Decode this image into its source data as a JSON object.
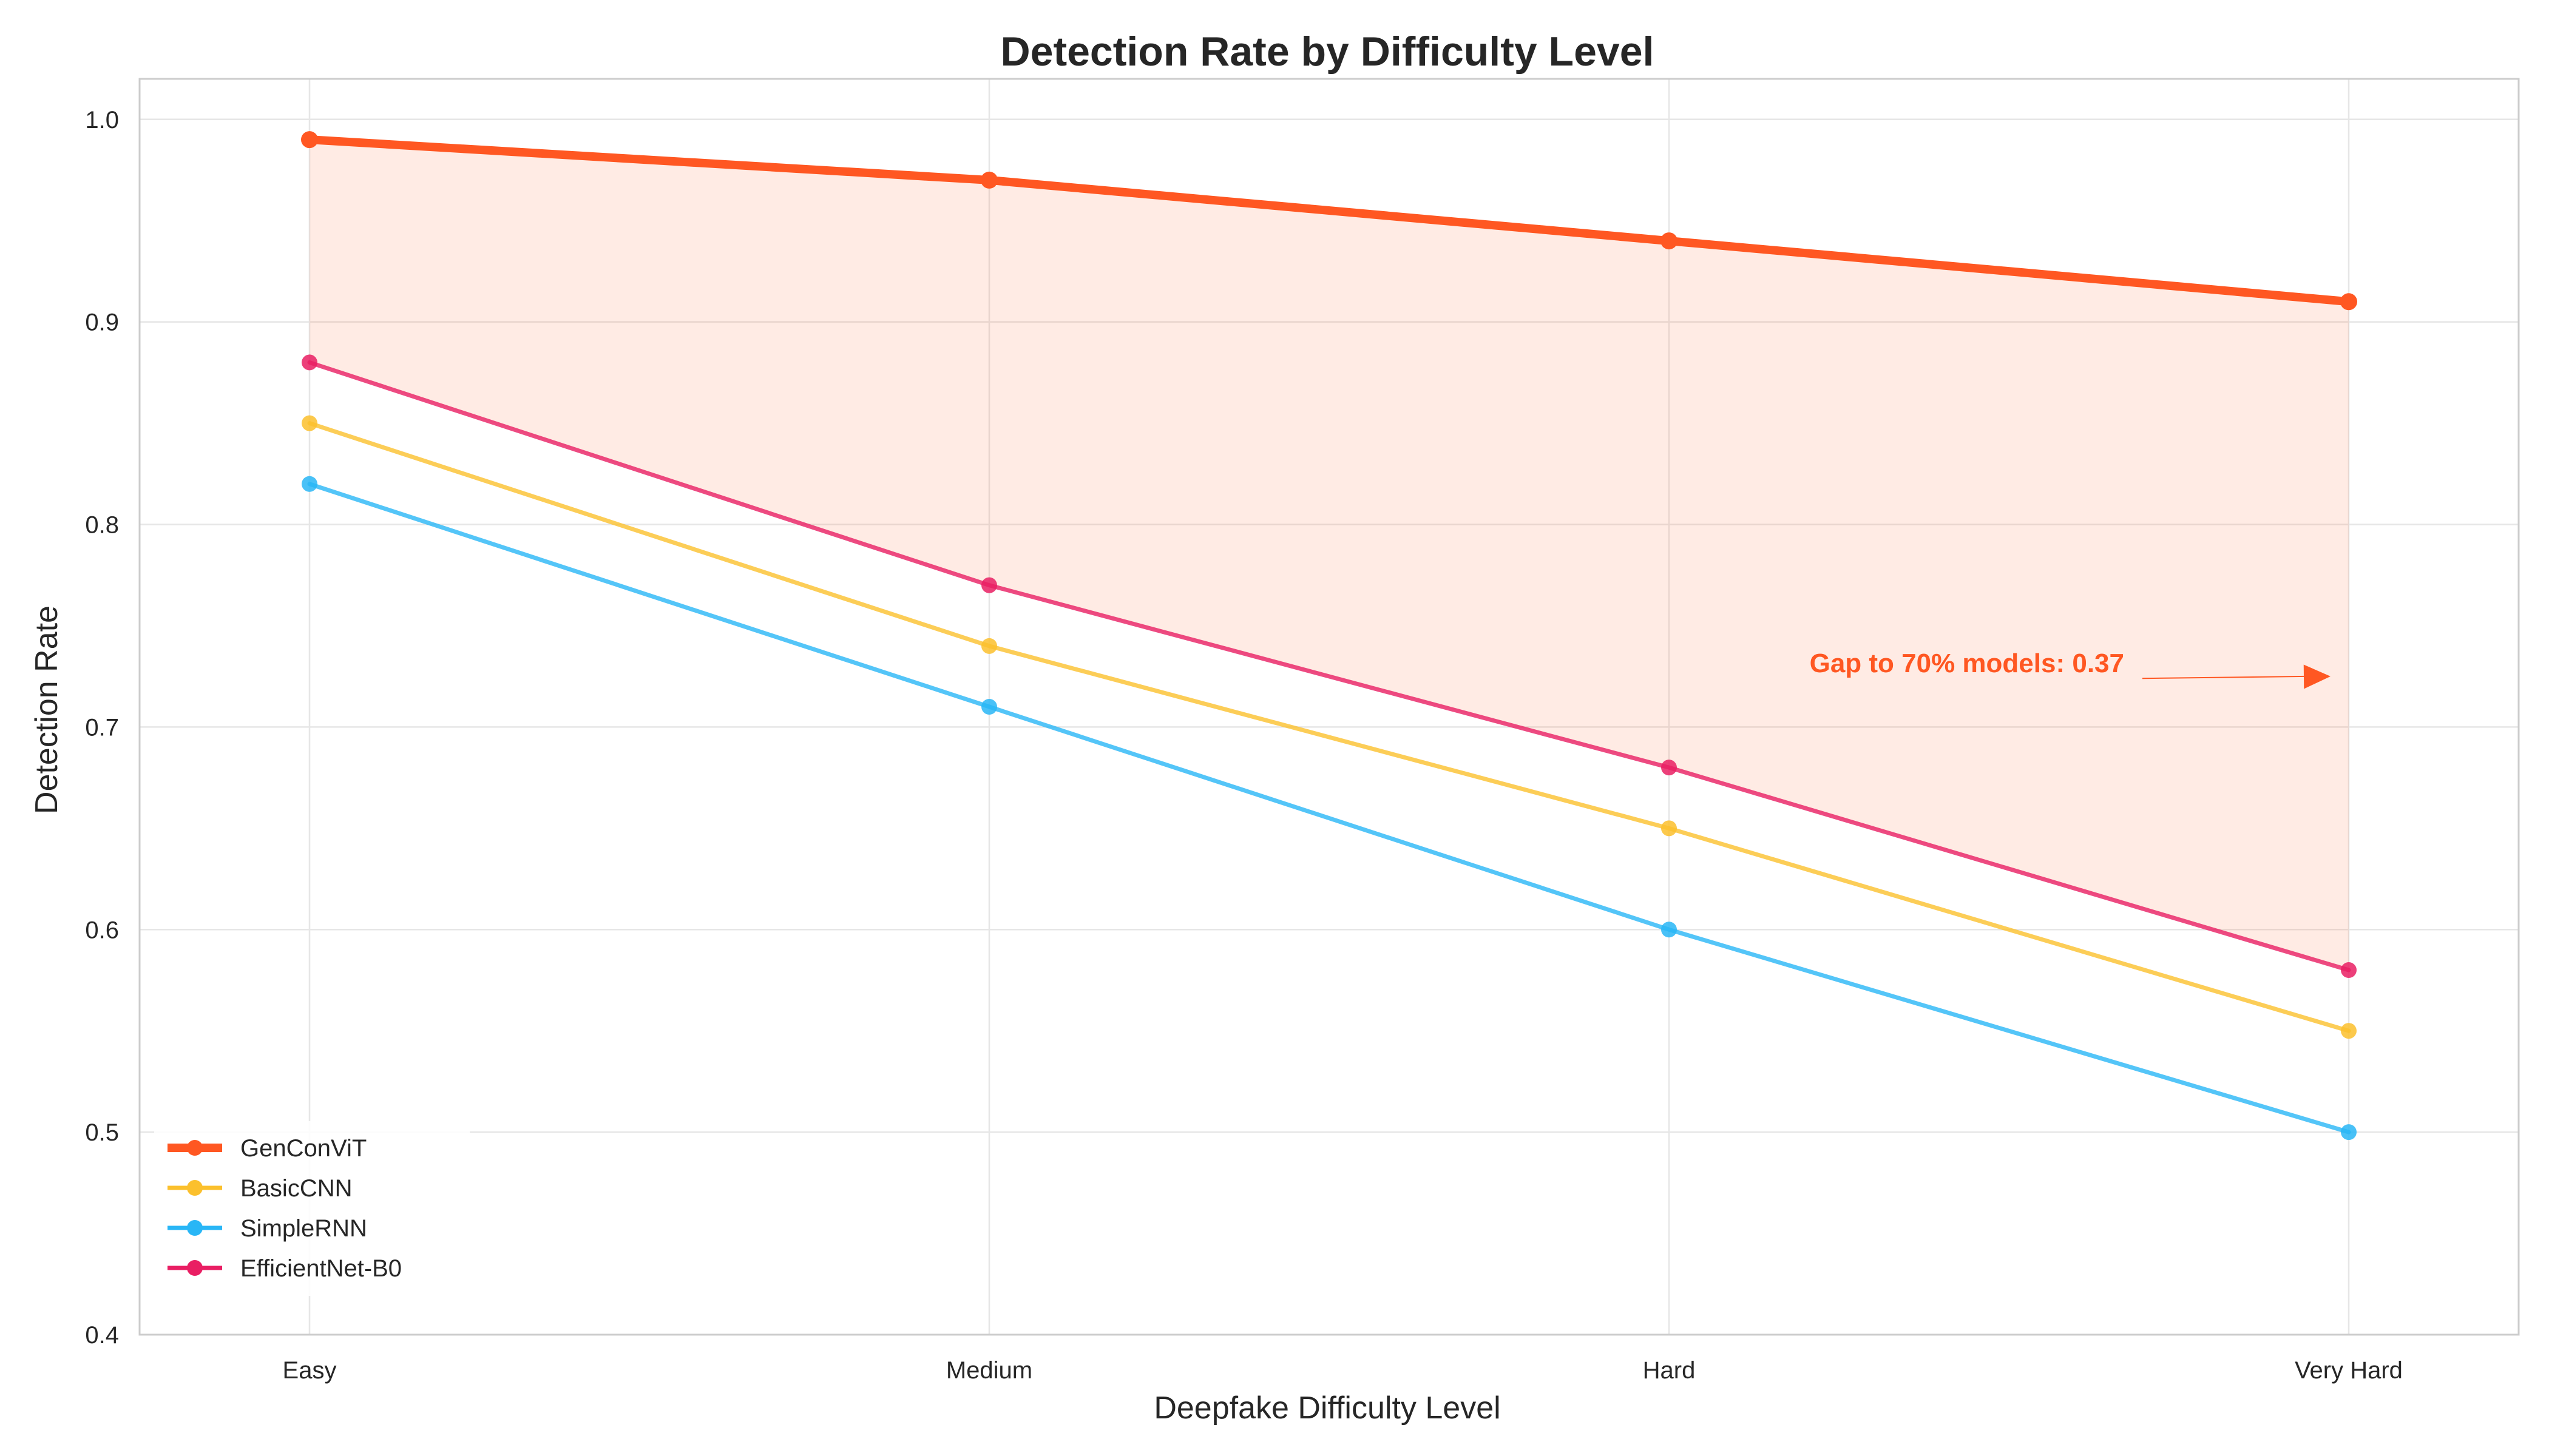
{
  "chart_data": {
    "type": "line",
    "title": "Detection Rate by Difficulty Level",
    "xlabel": "Deepfake Difficulty Level",
    "ylabel": "Detection Rate",
    "categories": [
      "Easy",
      "Medium",
      "Hard",
      "Very Hard"
    ],
    "ylim": [
      0.4,
      1.02
    ],
    "yticks": [
      "0.4",
      "0.5",
      "0.6",
      "0.7",
      "0.8",
      "0.9",
      "1.0"
    ],
    "grid": true,
    "legend_position": "bottom-left",
    "series": [
      {
        "name": "GenConViT",
        "values": [
          0.99,
          0.97,
          0.94,
          0.91
        ],
        "color": "#FF5722",
        "emphasis": true
      },
      {
        "name": "BasicCNN",
        "values": [
          0.85,
          0.74,
          0.65,
          0.55
        ],
        "color": "#FBC02D"
      },
      {
        "name": "SimpleRNN",
        "values": [
          0.82,
          0.71,
          0.6,
          0.5
        ],
        "color": "#29B6F6"
      },
      {
        "name": "EfficientNet-B0",
        "values": [
          0.88,
          0.77,
          0.68,
          0.58
        ],
        "color": "#E91E63"
      }
    ],
    "fill_between": {
      "upper": "GenConViT",
      "lower": "EfficientNet-B0",
      "color": "#FF5722"
    },
    "annotation": {
      "text": "Gap to 70% models: 0.37",
      "color": "#FF5722",
      "text_at": {
        "x": "Very Hard",
        "y": 0.73
      },
      "arrow_to": {
        "x": "Very Hard",
        "y": 0.725
      }
    }
  }
}
